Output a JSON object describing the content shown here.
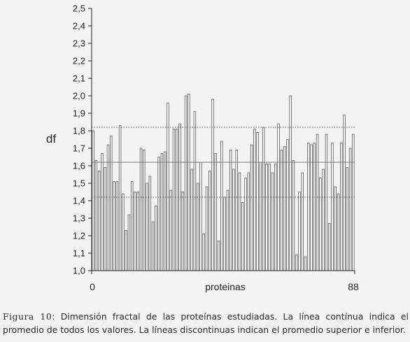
{
  "chart_data": {
    "type": "bar",
    "ylabel": "df",
    "xlabel": "proteinas",
    "ylim": [
      1.0,
      2.5
    ],
    "yticks": [
      "1,0",
      "1,1",
      "1,2",
      "1,3",
      "1,4",
      "1,5",
      "1,6",
      "1,7",
      "1,8",
      "1,9",
      "2,0",
      "2,1",
      "2,2",
      "2,3",
      "2,4",
      "2,5"
    ],
    "xticks": [
      "0",
      "88"
    ],
    "mean_line": 1.62,
    "upper_mean_line": 1.82,
    "lower_mean_line": 1.42,
    "values": [
      1.8,
      1.63,
      1.57,
      1.67,
      1.59,
      1.72,
      1.77,
      1.51,
      1.51,
      1.83,
      1.44,
      1.23,
      1.32,
      1.51,
      1.45,
      1.45,
      1.7,
      1.69,
      1.5,
      1.54,
      1.28,
      1.37,
      1.65,
      1.67,
      1.68,
      1.96,
      1.46,
      1.81,
      1.81,
      1.84,
      1.45,
      2.0,
      2.01,
      1.58,
      1.91,
      1.5,
      1.62,
      1.21,
      1.48,
      1.57,
      1.98,
      1.67,
      1.17,
      1.74,
      1.42,
      1.46,
      1.69,
      1.58,
      1.69,
      1.56,
      1.39,
      1.53,
      1.56,
      1.72,
      1.81,
      1.79,
      1.62,
      1.82,
      1.61,
      1.61,
      1.56,
      1.61,
      1.84,
      1.69,
      1.71,
      1.75,
      2.0,
      1.63,
      1.09,
      1.45,
      1.56,
      1.08,
      1.73,
      1.72,
      1.73,
      1.78,
      1.53,
      1.58,
      1.78,
      1.27,
      1.73,
      1.48,
      1.44,
      1.73,
      1.89,
      1.59,
      1.7,
      1.78
    ],
    "colors": {
      "bar_fill": "#ffffff",
      "bar_stroke": "#555555",
      "mean_line": "#777777",
      "dotted_line": "#555555",
      "axis": "#222222"
    }
  },
  "caption": {
    "label": "Figura 10",
    "text": ": Dimensión fractal de las proteínas estudiadas. La línea contínua indica el promedio de todos los valores. La líneas discontinuas indican el promedio superior e inferior."
  }
}
